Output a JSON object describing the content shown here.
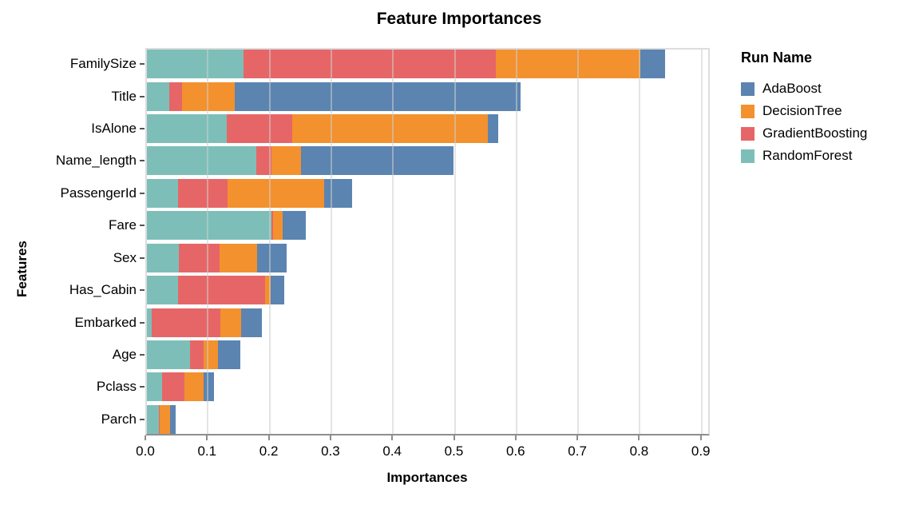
{
  "title": "Feature Importances",
  "axes": {
    "x_title": "Importances",
    "y_title": "Features"
  },
  "legend": {
    "title": "Run Name"
  },
  "chart_data": {
    "type": "bar",
    "orientation": "horizontal",
    "stacked": true,
    "stack_order": "reversed-vs-legend",
    "grid": true,
    "legend_position": "right",
    "title": "Feature Importances",
    "xlabel": "Importances",
    "ylabel": "Features",
    "xlim": [
      0.0,
      0.92
    ],
    "x_ticks": [
      "0.0",
      "0.1",
      "0.2",
      "0.3",
      "0.4",
      "0.5",
      "0.6",
      "0.7",
      "0.8",
      "0.9"
    ],
    "categories": [
      "FamilySize",
      "Title",
      "IsAlone",
      "Name_length",
      "PassengerId",
      "Fare",
      "Sex",
      "Has_Cabin",
      "Embarked",
      "Age",
      "Pclass",
      "Parch"
    ],
    "series": [
      {
        "name": "AdaBoost",
        "color": "#5b84b1",
        "values": [
          0.041,
          0.463,
          0.017,
          0.247,
          0.046,
          0.037,
          0.048,
          0.022,
          0.033,
          0.036,
          0.017,
          0.008
        ]
      },
      {
        "name": "DecisionTree",
        "color": "#f3912e",
        "values": [
          0.234,
          0.085,
          0.316,
          0.048,
          0.156,
          0.016,
          0.06,
          0.01,
          0.034,
          0.023,
          0.031,
          0.017
        ]
      },
      {
        "name": "GradientBoosting",
        "color": "#e66667",
        "values": [
          0.408,
          0.021,
          0.106,
          0.025,
          0.081,
          0.002,
          0.066,
          0.141,
          0.111,
          0.022,
          0.036,
          0.002
        ]
      },
      {
        "name": "RandomForest",
        "color": "#7dbfb8",
        "values": [
          0.157,
          0.036,
          0.13,
          0.177,
          0.05,
          0.202,
          0.052,
          0.05,
          0.008,
          0.07,
          0.025,
          0.019
        ]
      }
    ]
  }
}
